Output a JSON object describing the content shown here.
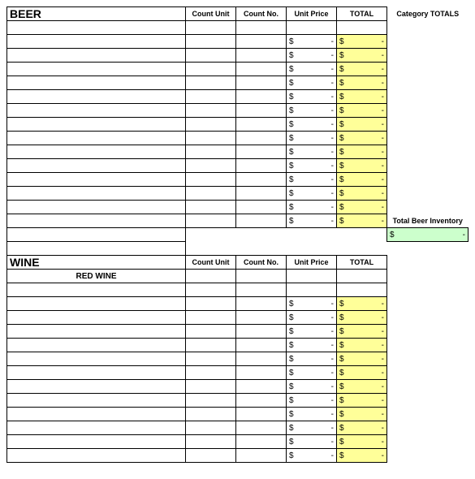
{
  "colors": {
    "highlight_yellow": "#ffff99",
    "highlight_green": "#ccffcc",
    "border": "#000000",
    "background": "#ffffff"
  },
  "columns": {
    "count_unit": "Count Unit",
    "count_no": "Count No.",
    "unit_price": "Unit Price",
    "total": "TOTAL",
    "category_totals": "Category TOTALS"
  },
  "currency_symbol": "$",
  "dash": "-",
  "sections": {
    "beer": {
      "title": "BEER",
      "blank_rows_before_data": 1,
      "data_rows": 14,
      "summary_label": "Total Beer Inventory"
    },
    "wine": {
      "title": "WINE",
      "subheader": "RED WINE",
      "blank_rows_before_data": 1,
      "data_rows": 12
    }
  }
}
